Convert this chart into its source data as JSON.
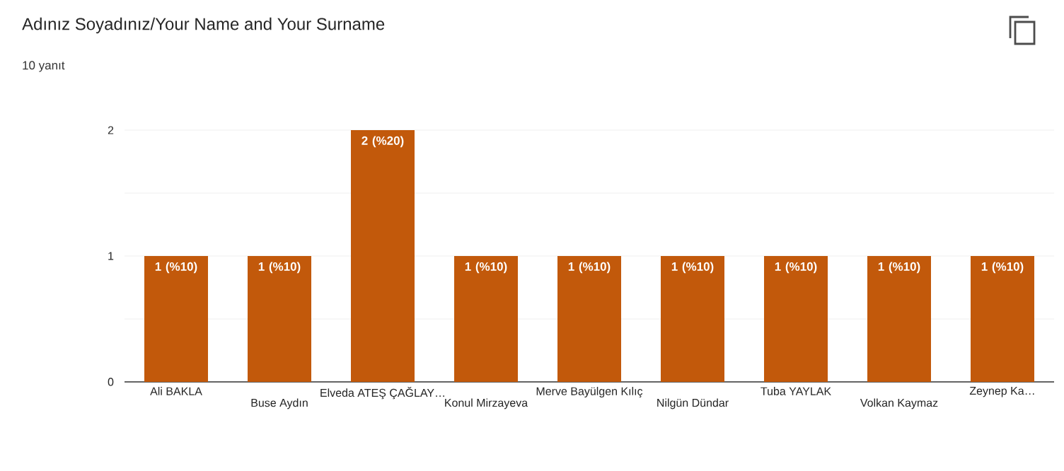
{
  "chart_data": {
    "type": "bar",
    "title": "Adınız Soyadınız/Your Name and Your Surname",
    "subtitle": "10 yanıt",
    "categories": [
      "Ali BAKLA",
      "Buse Aydın",
      "Elveda ATEŞ ÇAĞLAY…",
      "Konul Mirzayeva",
      "Merve Bayülgen Kılıç",
      "Nilgün Dündar",
      "Tuba YAYLAK",
      "Volkan Kaymaz",
      "Zeynep Ka…"
    ],
    "values": [
      1,
      1,
      2,
      1,
      1,
      1,
      1,
      1,
      1
    ],
    "value_labels": [
      "1 (%10)",
      "1 (%10)",
      "2 (%20)",
      "1 (%10)",
      "1 (%10)",
      "1 (%10)",
      "1 (%10)",
      "1 (%10)",
      "1 (%10)"
    ],
    "color": "#c2590b",
    "ylim": [
      0,
      2
    ],
    "yticks": [
      0,
      {
        "value": 0.5,
        "label": null
      },
      1,
      {
        "value": 1.5,
        "label": null
      },
      2
    ],
    "grid": "y"
  }
}
